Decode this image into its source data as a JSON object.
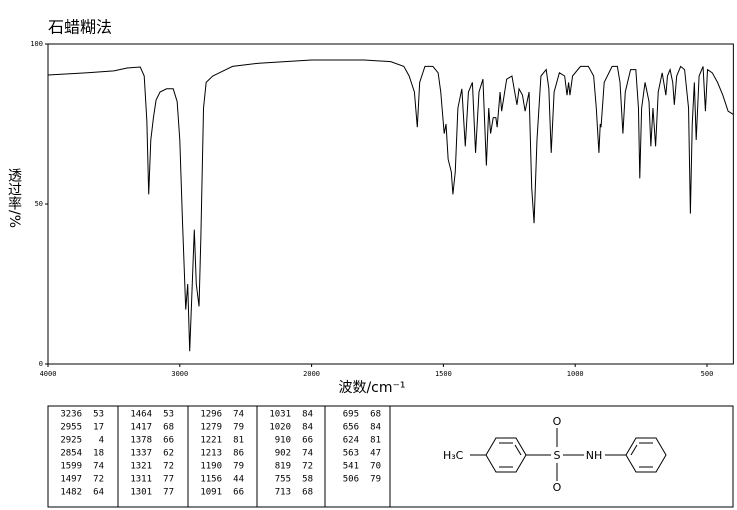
{
  "chart_data": {
    "type": "line",
    "title": "石蜡糊法",
    "x_label": "波数/cm⁻¹",
    "y_label": "透过率/%",
    "color": "#000000",
    "xlim": [
      4000,
      400
    ],
    "xticks": [
      4000,
      3000,
      2000,
      1500,
      1000,
      500
    ],
    "ylim": [
      0,
      100
    ],
    "yticks": [
      0,
      50,
      100
    ],
    "x": [
      4000,
      3700,
      3500,
      3400,
      3300,
      3270,
      3250,
      3236,
      3220,
      3200,
      3180,
      3150,
      3100,
      3050,
      3020,
      3000,
      2980,
      2955,
      2940,
      2925,
      2910,
      2890,
      2875,
      2854,
      2840,
      2820,
      2800,
      2750,
      2700,
      2600,
      2400,
      2200,
      2000,
      1900,
      1800,
      1700,
      1650,
      1630,
      1610,
      1599,
      1590,
      1570,
      1540,
      1520,
      1510,
      1497,
      1490,
      1482,
      1470,
      1464,
      1455,
      1445,
      1430,
      1417,
      1405,
      1390,
      1378,
      1365,
      1350,
      1337,
      1328,
      1321,
      1311,
      1301,
      1296,
      1285,
      1279,
      1260,
      1240,
      1221,
      1213,
      1200,
      1190,
      1175,
      1165,
      1156,
      1145,
      1130,
      1110,
      1100,
      1091,
      1080,
      1060,
      1040,
      1031,
      1025,
      1020,
      1010,
      980,
      950,
      930,
      920,
      910,
      905,
      902,
      890,
      860,
      840,
      830,
      819,
      810,
      790,
      770,
      760,
      755,
      748,
      735,
      720,
      713,
      705,
      695,
      685,
      670,
      660,
      656,
      650,
      640,
      630,
      624,
      615,
      600,
      585,
      570,
      563,
      556,
      548,
      541,
      530,
      515,
      506,
      498,
      480,
      460,
      440,
      420,
      400
    ],
    "values": [
      90.3,
      91,
      91.6,
      92.5,
      92.8,
      90,
      76,
      53,
      70,
      77,
      82.5,
      85,
      86,
      86,
      82,
      70,
      45,
      17,
      25,
      4,
      20,
      42,
      25,
      18,
      40,
      80,
      88,
      90,
      91,
      93,
      94,
      94.5,
      95,
      95,
      95,
      94.5,
      93,
      90,
      85,
      74,
      88,
      93,
      93,
      91,
      85,
      72,
      75,
      64,
      60,
      53,
      60,
      80,
      86,
      68,
      85,
      88,
      66,
      85,
      89,
      62,
      80,
      72,
      77,
      77,
      74,
      85,
      79,
      89,
      90,
      81,
      86,
      84,
      79,
      85,
      55,
      44,
      70,
      90,
      92,
      86,
      66,
      85,
      91,
      90,
      84,
      88,
      84,
      90,
      93,
      93,
      90,
      80,
      66,
      75,
      74,
      88,
      93,
      93,
      88,
      72,
      85,
      92,
      92,
      80,
      58,
      80,
      88,
      82,
      68,
      80,
      68,
      85,
      91,
      86,
      84,
      90,
      92,
      88,
      81,
      90,
      93,
      92,
      80,
      47,
      75,
      88,
      70,
      90,
      93,
      79,
      92,
      91,
      88,
      84,
      79,
      78
    ]
  },
  "peak_table": {
    "columns": [
      [
        [
          3236,
          53
        ],
        [
          2955,
          17
        ],
        [
          2925,
          4
        ],
        [
          2854,
          18
        ],
        [
          1599,
          74
        ],
        [
          1497,
          72
        ],
        [
          1482,
          64
        ]
      ],
      [
        [
          1464,
          53
        ],
        [
          1417,
          68
        ],
        [
          1378,
          66
        ],
        [
          1337,
          62
        ],
        [
          1321,
          72
        ],
        [
          1311,
          77
        ],
        [
          1301,
          77
        ]
      ],
      [
        [
          1296,
          74
        ],
        [
          1279,
          79
        ],
        [
          1221,
          81
        ],
        [
          1213,
          86
        ],
        [
          1190,
          79
        ],
        [
          1156,
          44
        ],
        [
          1091,
          66
        ]
      ],
      [
        [
          1031,
          84
        ],
        [
          1020,
          84
        ],
        [
          910,
          66
        ],
        [
          902,
          74
        ],
        [
          819,
          72
        ],
        [
          755,
          58
        ],
        [
          713,
          68
        ]
      ],
      [
        [
          695,
          68
        ],
        [
          656,
          84
        ],
        [
          624,
          81
        ],
        [
          563,
          47
        ],
        [
          541,
          70
        ],
        [
          506,
          79
        ]
      ]
    ]
  },
  "structure": {
    "labels": [
      "H₃C",
      "S",
      "O",
      "O",
      "NH"
    ]
  }
}
